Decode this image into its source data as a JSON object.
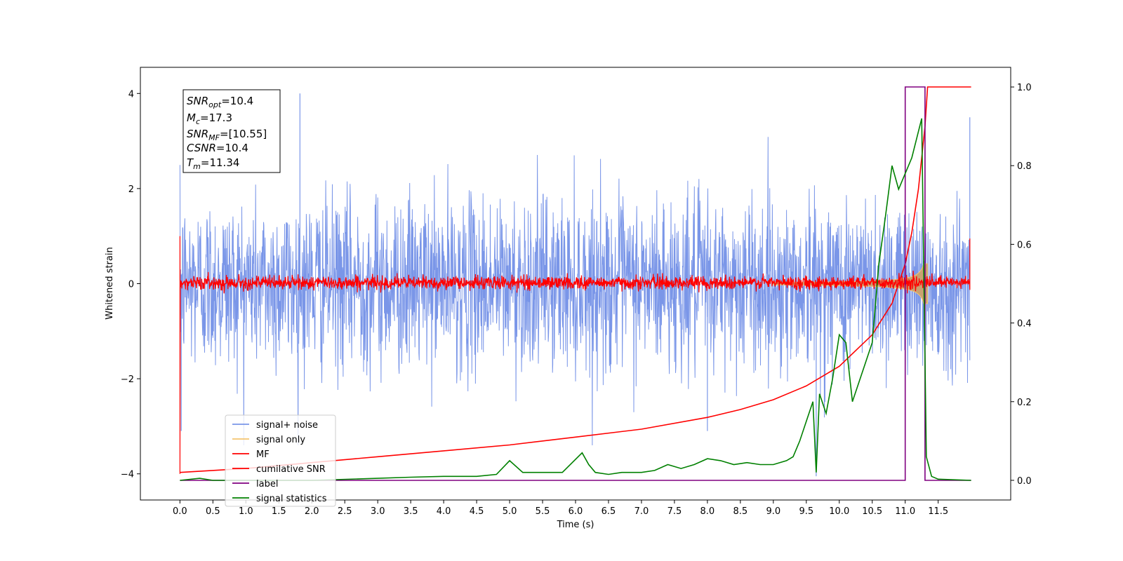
{
  "chart_data": {
    "type": "line",
    "xlabel": "Time (s)",
    "ylabel": "Whitened strain",
    "xlim": [
      -0.6,
      12.6
    ],
    "ylim": [
      -4.55,
      4.55
    ],
    "y2lim": [
      -0.05,
      1.05
    ],
    "xticks": [
      "0.0",
      "0.5",
      "1.0",
      "1.5",
      "2.0",
      "2.5",
      "3.0",
      "3.5",
      "4.0",
      "4.5",
      "5.0",
      "5.5",
      "6.0",
      "6.5",
      "7.0",
      "7.5",
      "8.0",
      "8.5",
      "9.0",
      "9.5",
      "10.0",
      "10.5",
      "11.0",
      "11.5"
    ],
    "yticks": [
      "4",
      "2",
      "0",
      "−2",
      "−4"
    ],
    "y2ticks": [
      "1.0",
      "0.8",
      "0.6",
      "0.4",
      "0.2",
      "0.0"
    ],
    "grid": false,
    "legend_position": "lower-left",
    "info_box": {
      "snr_opt": {
        "main": "SNR",
        "sub": "opt",
        "value": "=10.4"
      },
      "mc": {
        "main": "M",
        "sub": "c",
        "value": "=17.3"
      },
      "snr_mf": {
        "main": "SNR",
        "sub": "MF",
        "value": "=[10.55]"
      },
      "csnr": {
        "main": "CSNR",
        "value": "=10.4"
      },
      "tm": {
        "main": "T",
        "sub": "m",
        "value": "=11.34"
      }
    },
    "series": [
      {
        "name": "signal+ noise",
        "color": "#7a96e8",
        "axis": "left",
        "kind": "noise",
        "sigma": 0.9,
        "extremes": [
          [
            0.02,
            -3.1
          ],
          [
            1.82,
            4.0
          ],
          [
            8.0,
            -3.1
          ],
          [
            9.65,
            -4.05
          ],
          [
            11.3,
            -4.1
          ],
          [
            11.98,
            3.5
          ]
        ]
      },
      {
        "name": "signal only",
        "color": "#f5c46f",
        "axis": "left",
        "kind": "chirp",
        "merger": 11.34,
        "peak_amplitude": 0.9
      },
      {
        "name": "MF",
        "color": "#ff0000",
        "axis": "left",
        "kind": "noise",
        "sigma": 0.07,
        "start": [
          1.0,
          -4.0
        ],
        "end": 0.95
      },
      {
        "name": "cumilative SNR",
        "color": "#ff0000",
        "axis": "right",
        "x": [
          0.0,
          1.0,
          2.0,
          3.0,
          4.0,
          5.0,
          6.0,
          7.0,
          8.0,
          8.5,
          9.0,
          9.5,
          10.0,
          10.5,
          10.8,
          11.0,
          11.1,
          11.2,
          11.3,
          11.34,
          11.5,
          12.0
        ],
        "y": [
          0.02,
          0.03,
          0.045,
          0.06,
          0.075,
          0.09,
          0.11,
          0.13,
          0.16,
          0.18,
          0.205,
          0.24,
          0.29,
          0.37,
          0.45,
          0.55,
          0.63,
          0.74,
          0.9,
          1.0,
          1.0,
          1.0
        ]
      },
      {
        "name": "label",
        "color": "#800080",
        "axis": "right",
        "x": [
          0.0,
          11.0,
          11.0,
          11.3,
          11.3,
          12.0
        ],
        "y": [
          0.0,
          0.0,
          1.0,
          1.0,
          0.0,
          0.0
        ]
      },
      {
        "name": "signal statistics",
        "color": "#008000",
        "axis": "right",
        "x": [
          0.0,
          0.3,
          0.5,
          1.0,
          2.0,
          3.0,
          3.5,
          4.0,
          4.5,
          4.8,
          5.0,
          5.2,
          5.5,
          5.8,
          5.95,
          6.1,
          6.2,
          6.3,
          6.5,
          6.7,
          7.0,
          7.2,
          7.4,
          7.6,
          7.8,
          8.0,
          8.2,
          8.4,
          8.6,
          8.8,
          9.0,
          9.2,
          9.3,
          9.4,
          9.5,
          9.6,
          9.65,
          9.7,
          9.8,
          9.9,
          10.0,
          10.1,
          10.2,
          10.3,
          10.4,
          10.5,
          10.6,
          10.7,
          10.8,
          10.9,
          11.0,
          11.1,
          11.25,
          11.32,
          11.4,
          11.5,
          12.0
        ],
        "y": [
          0.0,
          0.005,
          0.0,
          0.0,
          0.0,
          0.005,
          0.008,
          0.01,
          0.01,
          0.015,
          0.05,
          0.02,
          0.02,
          0.02,
          0.045,
          0.07,
          0.04,
          0.02,
          0.015,
          0.02,
          0.02,
          0.025,
          0.04,
          0.03,
          0.04,
          0.055,
          0.05,
          0.04,
          0.045,
          0.04,
          0.04,
          0.05,
          0.06,
          0.1,
          0.15,
          0.2,
          0.02,
          0.22,
          0.17,
          0.26,
          0.37,
          0.35,
          0.2,
          0.25,
          0.3,
          0.35,
          0.55,
          0.67,
          0.8,
          0.74,
          0.78,
          0.82,
          0.92,
          0.06,
          0.01,
          0.003,
          0.0
        ]
      }
    ]
  }
}
